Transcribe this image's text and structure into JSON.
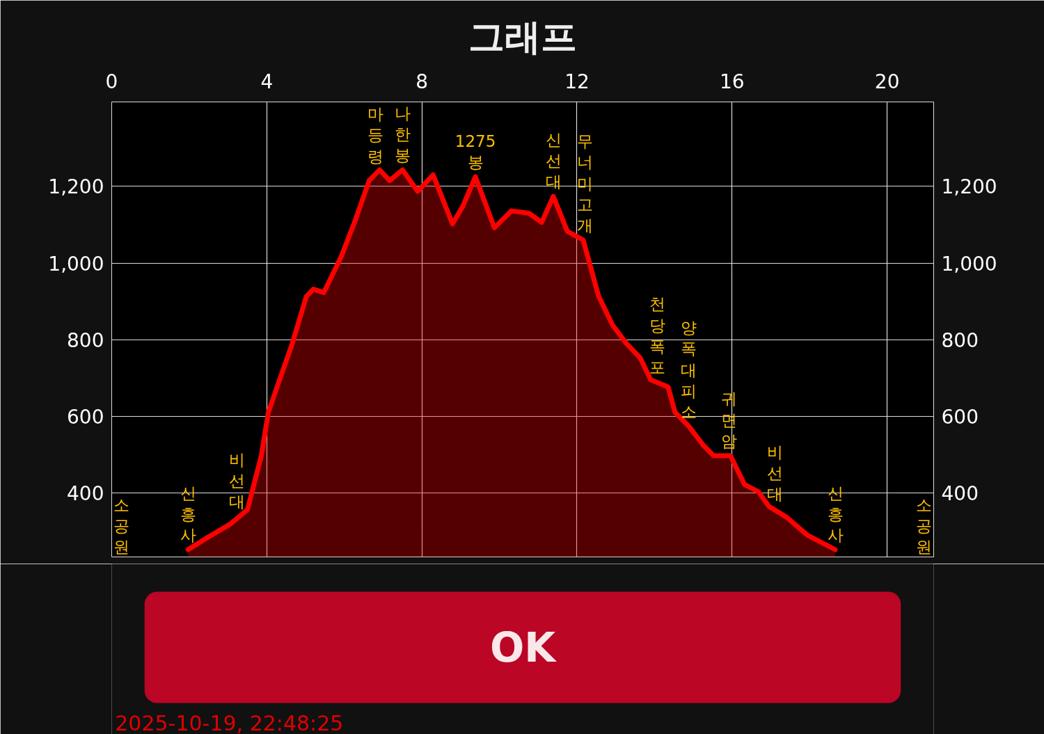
{
  "chart_data": {
    "type": "area",
    "title": "그래프",
    "x": [
      1.97,
      2.51,
      3.05,
      3.5,
      3.86,
      4.04,
      4.3,
      4.66,
      5.02,
      5.2,
      5.47,
      5.92,
      6.28,
      6.64,
      6.91,
      7.17,
      7.5,
      7.89,
      8.29,
      8.79,
      9.06,
      9.38,
      9.87,
      10.31,
      10.76,
      11.09,
      11.39,
      11.75,
      12.16,
      12.56,
      12.92,
      13.27,
      13.63,
      13.9,
      14.35,
      14.53,
      14.89,
      15.25,
      15.52,
      15.96,
      16.32,
      16.68,
      16.95,
      17.4,
      17.94,
      18.66
    ],
    "series": [
      {
        "color": "#ff0000",
        "values": [
          253,
          287,
          319,
          357,
          498,
          611,
          687,
          791,
          913,
          932,
          923,
          1017,
          1111,
          1215,
          1243,
          1215,
          1243,
          1187,
          1230,
          1102,
          1149,
          1225,
          1092,
          1136,
          1130,
          1106,
          1174,
          1083,
          1060,
          913,
          838,
          791,
          753,
          696,
          677,
          611,
          574,
          526,
          498,
          498,
          423,
          404,
          366,
          338,
          291,
          253
        ]
      }
    ],
    "xlim": [
      0,
      21.2
    ],
    "ylim": [
      234,
      1420
    ],
    "xticks": [
      0,
      4,
      8,
      12,
      16,
      20
    ],
    "yticks": [
      {
        "value": 400,
        "label": "400"
      },
      {
        "value": 600,
        "label": "600"
      },
      {
        "value": 800,
        "label": "800"
      },
      {
        "value": 1000,
        "label": "1,000"
      },
      {
        "value": 1200,
        "label": "1,200"
      }
    ],
    "y2lim": [
      234,
      1420
    ],
    "y2ticks": [
      {
        "value": 400,
        "label": "400"
      },
      {
        "value": 600,
        "label": "600"
      },
      {
        "value": 800,
        "label": "800"
      },
      {
        "value": 1000,
        "label": "1,000"
      },
      {
        "value": 1200,
        "label": "1,200"
      }
    ],
    "grid": true,
    "annotations": [
      "소공원",
      {
        "text": "신흥사",
        "x": 1.97,
        "y": 253
      },
      {
        "text": "비선대",
        "x": 3.23,
        "y": 340
      },
      {
        "text": "마등령",
        "x": 6.8,
        "y": 1240
      },
      {
        "text": "나한봉",
        "x": 7.5,
        "y": 1243
      },
      {
        "text": "1275봉",
        "x": 9.38,
        "y": 1225
      },
      {
        "text": "신선대",
        "x": 11.39,
        "y": 1174
      },
      {
        "text": "무너미고개",
        "x": 12.2,
        "y": 1060
      },
      {
        "text": "천당폭포",
        "x": 14.08,
        "y": 690
      },
      {
        "text": "양폭대피소",
        "x": 14.89,
        "y": 574
      },
      {
        "text": "귀면암",
        "x": 15.93,
        "y": 498
      },
      {
        "text": "비선대",
        "x": 17.1,
        "y": 360
      },
      {
        "text": "신흥사",
        "x": 18.66,
        "y": 253
      },
      "소공원",
      "OK",
      "2025-10-19, 22:48:25"
    ]
  }
}
